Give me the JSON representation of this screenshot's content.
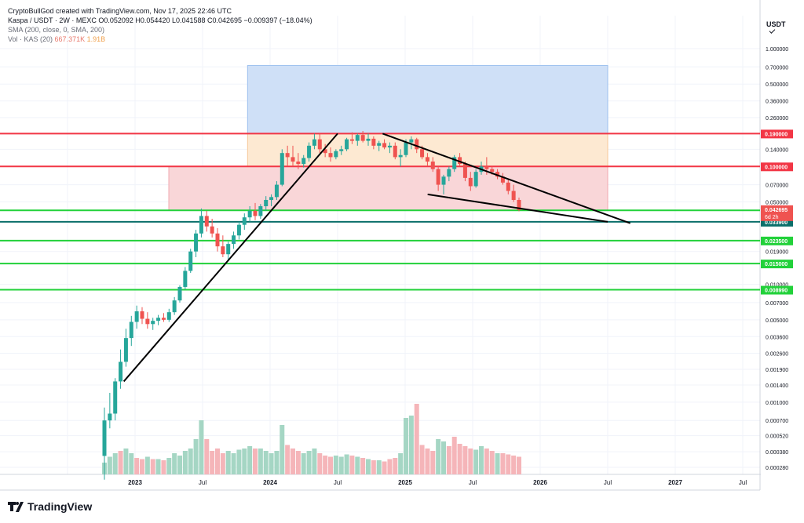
{
  "header": {
    "author": "CryptoBullGod created with TradingView.com, Nov 17, 2025 22:46 UTC",
    "symbol": "Kaspa / USDT · 2W · MEXC",
    "ohlc": "O0.052092  H0.054420  L0.041588  C0.042695  −0.009397 (−18.04%)",
    "sma": "SMA (200, close, 0, SMA, 200)",
    "vol_label": "Vol · KAS (20)",
    "vol_value": "667.371K",
    "vol_ma": "1.91B"
  },
  "currency": "USDT",
  "footer": {
    "brand": "TradingView"
  },
  "colors": {
    "up": "#26a69a",
    "down": "#ef5350",
    "vol_up": "#a5d6c4",
    "vol_down": "#f5b5b9",
    "red_line": "#f23645",
    "green_line": "#22d13a",
    "teal_line": "#0b6f6a",
    "blue_box": "#cfe0f7",
    "orange_box": "#fde9d2",
    "pink_box": "#f9d6d8"
  },
  "chart_data": {
    "type": "candlestick",
    "price_axis_ticks": [
      "1.000000",
      "0.700000",
      "0.500000",
      "0.360000",
      "0.260000",
      "0.140000",
      "0.070000",
      "0.050000",
      "0.019000",
      "0.010000",
      "0.007000",
      "0.005000",
      "0.003600",
      "0.002600",
      "0.001900",
      "0.001400",
      "0.001000",
      "0.000700",
      "0.000520",
      "0.000380",
      "0.000280"
    ],
    "time_axis_labels": [
      "2023",
      "Jul",
      "2024",
      "Jul",
      "2025",
      "Jul",
      "2026",
      "Jul",
      "2027",
      "Jul"
    ],
    "horizontal_levels": [
      {
        "value": "0.190000",
        "kind": "red"
      },
      {
        "value": "0.100000",
        "kind": "red"
      },
      {
        "value": "0.042400",
        "kind": "green"
      },
      {
        "value": "0.033900",
        "kind": "teal"
      },
      {
        "value": "0.023500",
        "kind": "green"
      },
      {
        "value": "0.015000",
        "kind": "green"
      },
      {
        "value": "0.008990",
        "kind": "green"
      }
    ],
    "last_price": {
      "value": "0.042695",
      "countdown": "6d 2h"
    },
    "ylim": [
      0.0002,
      1.3
    ],
    "log_scale": true,
    "candles": [
      [
        0.00035,
        0.0009,
        0.00022,
        0.0007
      ],
      [
        0.0007,
        0.0012,
        0.0006,
        0.0008
      ],
      [
        0.0008,
        0.0016,
        0.0007,
        0.0015
      ],
      [
        0.0015,
        0.0028,
        0.0013,
        0.0022
      ],
      [
        0.0022,
        0.0042,
        0.002,
        0.0035
      ],
      [
        0.0035,
        0.0054,
        0.003,
        0.0048
      ],
      [
        0.0048,
        0.0066,
        0.0042,
        0.0059
      ],
      [
        0.0059,
        0.0064,
        0.0046,
        0.0051
      ],
      [
        0.0051,
        0.0058,
        0.0042,
        0.0046
      ],
      [
        0.0046,
        0.0052,
        0.0041,
        0.0049
      ],
      [
        0.0049,
        0.0055,
        0.0045,
        0.0052
      ],
      [
        0.0052,
        0.0057,
        0.0048,
        0.005
      ],
      [
        0.005,
        0.0062,
        0.0048,
        0.0058
      ],
      [
        0.0058,
        0.0078,
        0.0055,
        0.0073
      ],
      [
        0.0073,
        0.0098,
        0.007,
        0.0095
      ],
      [
        0.0095,
        0.014,
        0.009,
        0.013
      ],
      [
        0.013,
        0.02,
        0.0125,
        0.019
      ],
      [
        0.019,
        0.029,
        0.017,
        0.027
      ],
      [
        0.027,
        0.044,
        0.025,
        0.038
      ],
      [
        0.038,
        0.042,
        0.028,
        0.031
      ],
      [
        0.031,
        0.036,
        0.025,
        0.027
      ],
      [
        0.027,
        0.03,
        0.019,
        0.021
      ],
      [
        0.021,
        0.026,
        0.017,
        0.018
      ],
      [
        0.018,
        0.023,
        0.016,
        0.022
      ],
      [
        0.022,
        0.028,
        0.02,
        0.026
      ],
      [
        0.026,
        0.034,
        0.024,
        0.032
      ],
      [
        0.032,
        0.04,
        0.029,
        0.037
      ],
      [
        0.037,
        0.046,
        0.034,
        0.042
      ],
      [
        0.042,
        0.049,
        0.035,
        0.038
      ],
      [
        0.038,
        0.048,
        0.036,
        0.046
      ],
      [
        0.046,
        0.056,
        0.042,
        0.052
      ],
      [
        0.052,
        0.058,
        0.046,
        0.055
      ],
      [
        0.055,
        0.075,
        0.052,
        0.07
      ],
      [
        0.07,
        0.14,
        0.068,
        0.13
      ],
      [
        0.13,
        0.15,
        0.1,
        0.12
      ],
      [
        0.12,
        0.15,
        0.1,
        0.11
      ],
      [
        0.11,
        0.13,
        0.095,
        0.105
      ],
      [
        0.105,
        0.125,
        0.098,
        0.118
      ],
      [
        0.118,
        0.16,
        0.11,
        0.15
      ],
      [
        0.15,
        0.19,
        0.14,
        0.17
      ],
      [
        0.17,
        0.19,
        0.13,
        0.14
      ],
      [
        0.14,
        0.155,
        0.12,
        0.13
      ],
      [
        0.13,
        0.145,
        0.11,
        0.12
      ],
      [
        0.12,
        0.14,
        0.115,
        0.135
      ],
      [
        0.135,
        0.15,
        0.125,
        0.14
      ],
      [
        0.14,
        0.175,
        0.135,
        0.17
      ],
      [
        0.17,
        0.195,
        0.155,
        0.165
      ],
      [
        0.165,
        0.19,
        0.15,
        0.185
      ],
      [
        0.185,
        0.2,
        0.16,
        0.165
      ],
      [
        0.165,
        0.19,
        0.15,
        0.172
      ],
      [
        0.172,
        0.18,
        0.14,
        0.15
      ],
      [
        0.15,
        0.165,
        0.135,
        0.158
      ],
      [
        0.158,
        0.17,
        0.14,
        0.145
      ],
      [
        0.145,
        0.16,
        0.13,
        0.15
      ],
      [
        0.15,
        0.16,
        0.115,
        0.12
      ],
      [
        0.12,
        0.14,
        0.1,
        0.125
      ],
      [
        0.125,
        0.17,
        0.12,
        0.16
      ],
      [
        0.16,
        0.18,
        0.14,
        0.17
      ],
      [
        0.17,
        0.175,
        0.13,
        0.14
      ],
      [
        0.14,
        0.15,
        0.115,
        0.12
      ],
      [
        0.12,
        0.13,
        0.1,
        0.11
      ],
      [
        0.11,
        0.12,
        0.09,
        0.095
      ],
      [
        0.095,
        0.1,
        0.062,
        0.07
      ],
      [
        0.07,
        0.085,
        0.058,
        0.082
      ],
      [
        0.082,
        0.1,
        0.075,
        0.095
      ],
      [
        0.095,
        0.125,
        0.09,
        0.12
      ],
      [
        0.12,
        0.13,
        0.1,
        0.105
      ],
      [
        0.105,
        0.11,
        0.075,
        0.08
      ],
      [
        0.08,
        0.09,
        0.062,
        0.068
      ],
      [
        0.068,
        0.095,
        0.066,
        0.09
      ],
      [
        0.09,
        0.11,
        0.085,
        0.1
      ],
      [
        0.1,
        0.12,
        0.085,
        0.095
      ],
      [
        0.095,
        0.1,
        0.085,
        0.09
      ],
      [
        0.09,
        0.095,
        0.078,
        0.082
      ],
      [
        0.082,
        0.088,
        0.07,
        0.073
      ],
      [
        0.073,
        0.078,
        0.058,
        0.062
      ],
      [
        0.062,
        0.07,
        0.05,
        0.052
      ],
      [
        0.052,
        0.0544,
        0.0416,
        0.0427
      ]
    ],
    "volume": [
      [
        0.1,
        1
      ],
      [
        0.15,
        1
      ],
      [
        0.18,
        1
      ],
      [
        0.2,
        0
      ],
      [
        0.22,
        1
      ],
      [
        0.18,
        1
      ],
      [
        0.14,
        0
      ],
      [
        0.13,
        0
      ],
      [
        0.15,
        1
      ],
      [
        0.13,
        0
      ],
      [
        0.13,
        1
      ],
      [
        0.12,
        0
      ],
      [
        0.14,
        1
      ],
      [
        0.18,
        1
      ],
      [
        0.16,
        1
      ],
      [
        0.2,
        1
      ],
      [
        0.22,
        1
      ],
      [
        0.3,
        1
      ],
      [
        0.46,
        1
      ],
      [
        0.3,
        0
      ],
      [
        0.2,
        0
      ],
      [
        0.22,
        0
      ],
      [
        0.18,
        0
      ],
      [
        0.2,
        1
      ],
      [
        0.18,
        1
      ],
      [
        0.21,
        1
      ],
      [
        0.22,
        1
      ],
      [
        0.24,
        1
      ],
      [
        0.22,
        0
      ],
      [
        0.22,
        1
      ],
      [
        0.2,
        1
      ],
      [
        0.18,
        1
      ],
      [
        0.2,
        1
      ],
      [
        0.42,
        1
      ],
      [
        0.25,
        0
      ],
      [
        0.22,
        0
      ],
      [
        0.2,
        0
      ],
      [
        0.18,
        1
      ],
      [
        0.2,
        1
      ],
      [
        0.22,
        1
      ],
      [
        0.18,
        0
      ],
      [
        0.16,
        0
      ],
      [
        0.15,
        0
      ],
      [
        0.16,
        1
      ],
      [
        0.15,
        1
      ],
      [
        0.17,
        1
      ],
      [
        0.16,
        0
      ],
      [
        0.15,
        1
      ],
      [
        0.14,
        0
      ],
      [
        0.13,
        1
      ],
      [
        0.12,
        0
      ],
      [
        0.12,
        1
      ],
      [
        0.11,
        0
      ],
      [
        0.13,
        0
      ],
      [
        0.14,
        0
      ],
      [
        0.18,
        1
      ],
      [
        0.48,
        1
      ],
      [
        0.5,
        1
      ],
      [
        0.6,
        0
      ],
      [
        0.25,
        0
      ],
      [
        0.22,
        0
      ],
      [
        0.2,
        0
      ],
      [
        0.3,
        1
      ],
      [
        0.28,
        1
      ],
      [
        0.24,
        0
      ],
      [
        0.32,
        0
      ],
      [
        0.26,
        0
      ],
      [
        0.24,
        0
      ],
      [
        0.22,
        0
      ],
      [
        0.21,
        1
      ],
      [
        0.24,
        1
      ],
      [
        0.22,
        0
      ],
      [
        0.2,
        0
      ],
      [
        0.18,
        1
      ],
      [
        0.18,
        0
      ],
      [
        0.17,
        0
      ],
      [
        0.16,
        0
      ],
      [
        0.15,
        0
      ]
    ],
    "drawings": {
      "support_trendline": [
        [
          "2022-12",
          "0.0015"
        ],
        [
          "2024-07",
          "0.19"
        ]
      ],
      "upper_wedge_line": [
        [
          "2024-11",
          "0.19"
        ],
        [
          "2026-09",
          "0.033"
        ]
      ],
      "lower_wedge_line": [
        [
          "2025-03",
          "0.058"
        ],
        [
          "2026-07",
          "0.0339"
        ]
      ],
      "target_box": {
        "from": "2023-11",
        "to": "2026-07",
        "low": "0.19",
        "high": "0.72"
      },
      "zone_box_orange": {
        "from": "2023-11",
        "to": "2026-07",
        "low": "0.10",
        "high": "0.19"
      },
      "zone_box_pink": {
        "from": "2023-04",
        "to": "2026-07",
        "low": "0.0424",
        "high": "0.10"
      }
    }
  }
}
